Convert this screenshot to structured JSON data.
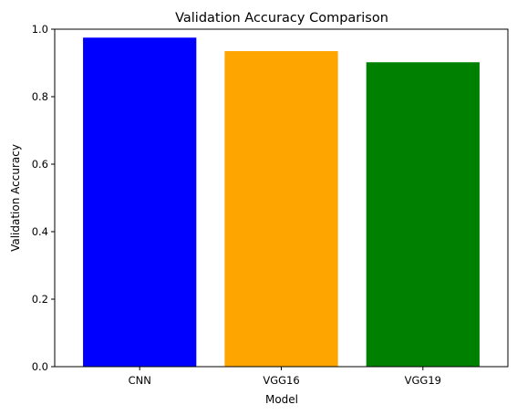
{
  "chart_data": {
    "type": "bar",
    "title": "Validation Accuracy Comparison",
    "xlabel": "Model",
    "ylabel": "Validation Accuracy",
    "categories": [
      "CNN",
      "VGG16",
      "VGG19"
    ],
    "values": [
      0.975,
      0.935,
      0.902
    ],
    "colors": [
      "#0000ff",
      "#ffa500",
      "#008000"
    ],
    "ylim": [
      0,
      1.0
    ],
    "yticks": [
      "0.0",
      "0.2",
      "0.4",
      "0.6",
      "0.8",
      "1.0"
    ],
    "grid": false,
    "legend": "none"
  }
}
